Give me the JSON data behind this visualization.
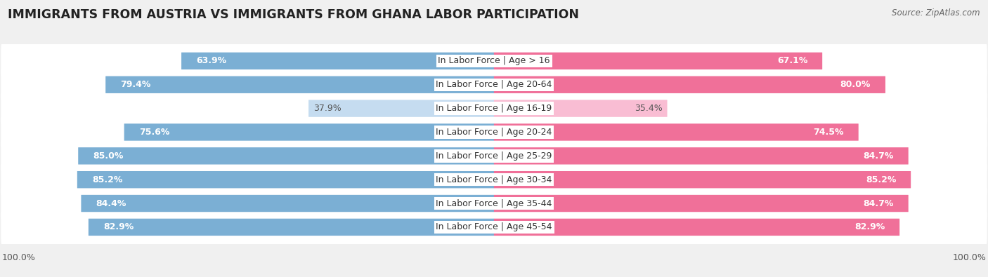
{
  "title": "IMMIGRANTS FROM AUSTRIA VS IMMIGRANTS FROM GHANA LABOR PARTICIPATION",
  "source": "Source: ZipAtlas.com",
  "categories": [
    "In Labor Force | Age > 16",
    "In Labor Force | Age 20-64",
    "In Labor Force | Age 16-19",
    "In Labor Force | Age 20-24",
    "In Labor Force | Age 25-29",
    "In Labor Force | Age 30-34",
    "In Labor Force | Age 35-44",
    "In Labor Force | Age 45-54"
  ],
  "austria_values": [
    63.9,
    79.4,
    37.9,
    75.6,
    85.0,
    85.2,
    84.4,
    82.9
  ],
  "ghana_values": [
    67.1,
    80.0,
    35.4,
    74.5,
    84.7,
    85.2,
    84.7,
    82.9
  ],
  "austria_color": "#7BAFD4",
  "austria_color_light": "#C5DCF0",
  "ghana_color": "#F07099",
  "ghana_color_light": "#F9BDD3",
  "bg_color": "#f0f0f0",
  "row_bg_color": "#e0e0e0",
  "max_value": 100.0,
  "title_fontsize": 12.5,
  "label_fontsize": 9.0,
  "value_fontsize": 9.0,
  "tick_fontsize": 9,
  "legend_fontsize": 10
}
